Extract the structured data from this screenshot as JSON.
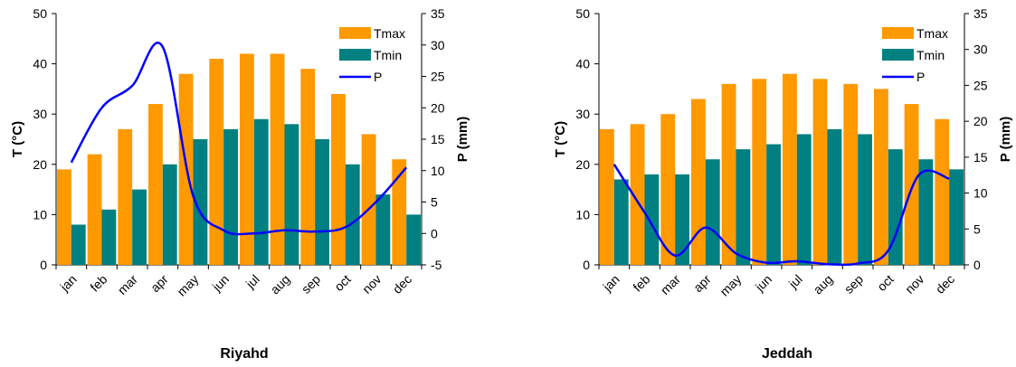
{
  "chart_data": [
    {
      "type": "bar",
      "title": "Riyahd",
      "y_label": "T (°C)",
      "y2_label": "P (mm)",
      "categories": [
        "jan",
        "feb",
        "mar",
        "apr",
        "may",
        "jun",
        "jul",
        "aug",
        "sep",
        "oct",
        "nov",
        "dec"
      ],
      "series": [
        {
          "name": "Tmax",
          "color": "#FF9900",
          "values": [
            19,
            22,
            27,
            32,
            38,
            41,
            42,
            42,
            39,
            34,
            26,
            21
          ]
        },
        {
          "name": "Tmin",
          "color": "#008080",
          "values": [
            8,
            11,
            15,
            20,
            25,
            27,
            29,
            28,
            25,
            20,
            14,
            10
          ]
        },
        {
          "name": "P",
          "color": "#0000FF",
          "axis": "y2",
          "type": "line",
          "values": [
            11.3,
            20,
            23.5,
            29.7,
            6,
            0.5,
            0,
            0.5,
            0.3,
            1,
            5,
            10.5
          ]
        }
      ],
      "ylim": [
        0,
        50
      ],
      "yticks": [
        0,
        10,
        20,
        30,
        40,
        50
      ],
      "y2lim": [
        -5,
        35
      ],
      "y2ticks": [
        -5,
        0,
        5,
        10,
        15,
        20,
        25,
        30,
        35
      ],
      "legend": "top-right"
    },
    {
      "type": "bar",
      "title": "Jeddah",
      "y_label": "T (°C)",
      "y2_label": "P (mm)",
      "categories": [
        "jan",
        "feb",
        "mar",
        "apr",
        "may",
        "jun",
        "jul",
        "aug",
        "sep",
        "oct",
        "nov",
        "dec"
      ],
      "series": [
        {
          "name": "Tmax",
          "color": "#FF9900",
          "values": [
            27,
            28,
            30,
            33,
            36,
            37,
            38,
            37,
            36,
            35,
            32,
            29
          ]
        },
        {
          "name": "Tmin",
          "color": "#008080",
          "values": [
            17,
            18,
            18,
            21,
            23,
            24,
            26,
            27,
            26,
            23,
            21,
            19
          ]
        },
        {
          "name": "P",
          "color": "#0000FF",
          "axis": "y2",
          "type": "line",
          "values": [
            14,
            7.3,
            1.3,
            5.2,
            1.6,
            0.3,
            0.5,
            0.1,
            0.2,
            2,
            12.5,
            12
          ]
        }
      ],
      "ylim": [
        0,
        50
      ],
      "yticks": [
        0,
        10,
        20,
        30,
        40,
        50
      ],
      "y2lim": [
        0,
        35
      ],
      "y2ticks": [
        0,
        5,
        10,
        15,
        20,
        25,
        30,
        35
      ],
      "legend": "top-right"
    }
  ]
}
